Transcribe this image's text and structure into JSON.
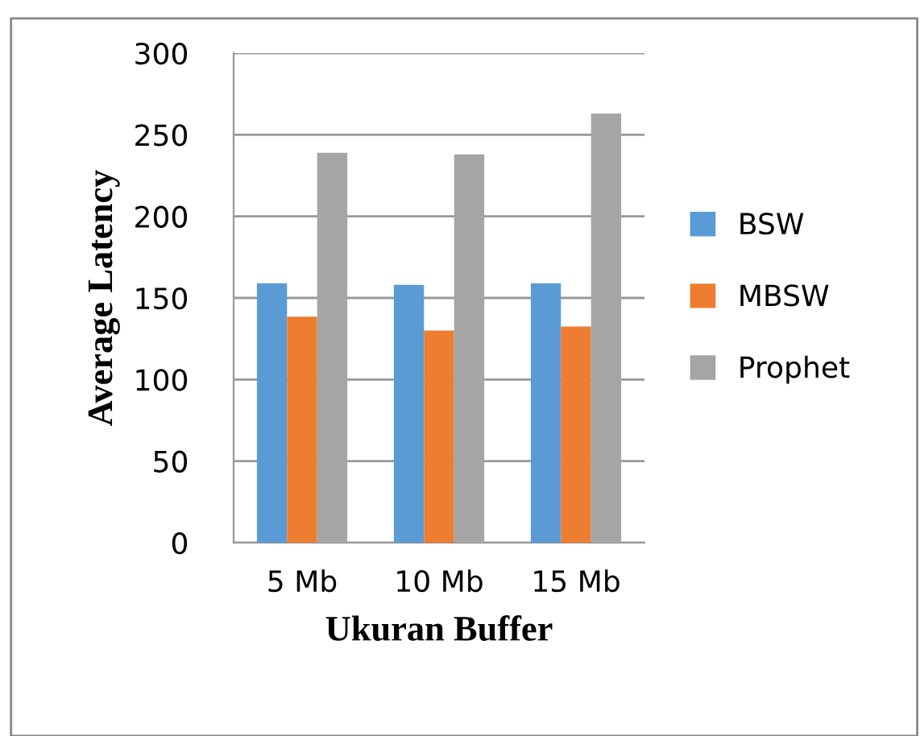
{
  "chart_data": {
    "type": "bar",
    "xlabel": "Ukuran Buffer",
    "ylabel": "Average Latency",
    "categories": [
      "5 Mb",
      "10 Mb",
      "15 Mb"
    ],
    "series": [
      {
        "name": "BSW",
        "color": "#5b9bd5",
        "values": [
          159,
          158,
          159
        ]
      },
      {
        "name": "MBSW",
        "color": "#ed7d31",
        "values": [
          138.5,
          130,
          132.5
        ]
      },
      {
        "name": "Prophet",
        "color": "#a5a5a5",
        "values": [
          239,
          238,
          263
        ]
      }
    ],
    "ylim": [
      0,
      300
    ],
    "yticks": [
      0,
      50,
      100,
      150,
      200,
      250,
      300
    ],
    "grid": "y",
    "legend": "right"
  }
}
